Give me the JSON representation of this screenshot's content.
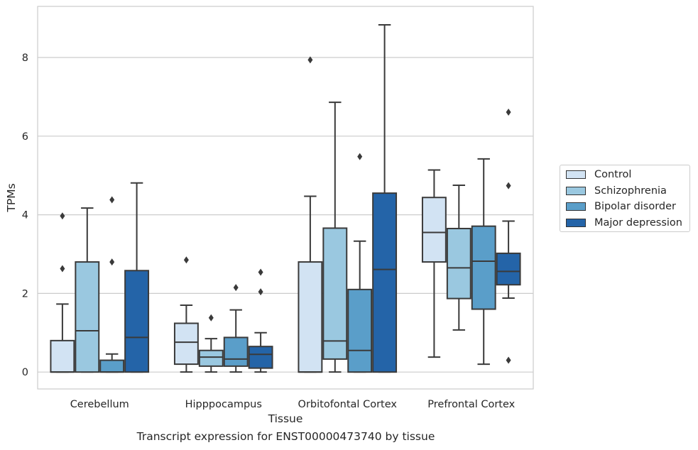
{
  "caption": "Transcript expression for ENST00000473740 by tissue",
  "chart_data": {
    "type": "box",
    "title": "",
    "xlabel": "Tissue",
    "ylabel": "TPMs",
    "ylim": [
      -0.43,
      9.3
    ],
    "yticks": [
      0,
      2,
      4,
      6,
      8
    ],
    "grid": "horizontal",
    "legend_position": "right",
    "categories": [
      "Cerebellum",
      "Hipppocampus",
      "Orbitofontal Cortex",
      "Prefrontal Cortex"
    ],
    "series": [
      {
        "name": "Control",
        "color": "#d2e3f3",
        "boxes": [
          {
            "whislo": 0,
            "q1": 0,
            "med": 0,
            "q3": 0.8,
            "whishi": 1.73,
            "fliers": [
              2.63,
              3.97
            ]
          },
          {
            "whislo": 0,
            "q1": 0.2,
            "med": 0.76,
            "q3": 1.24,
            "whishi": 1.7,
            "fliers": [
              2.85
            ]
          },
          {
            "whislo": 0,
            "q1": 0,
            "med": 0,
            "q3": 2.8,
            "whishi": 4.47,
            "fliers": [
              7.94
            ]
          },
          {
            "whislo": 0.38,
            "q1": 2.8,
            "med": 3.55,
            "q3": 4.44,
            "whishi": 5.14,
            "fliers": []
          }
        ]
      },
      {
        "name": "Schizophrenia",
        "color": "#9ac8e0",
        "boxes": [
          {
            "whislo": 0,
            "q1": 0,
            "med": 1.05,
            "q3": 2.8,
            "whishi": 4.17,
            "fliers": []
          },
          {
            "whislo": 0,
            "q1": 0.15,
            "med": 0.38,
            "q3": 0.55,
            "whishi": 0.85,
            "fliers": [
              1.38
            ]
          },
          {
            "whislo": 0,
            "q1": 0.33,
            "med": 0.79,
            "q3": 3.66,
            "whishi": 6.86,
            "fliers": []
          },
          {
            "whislo": 1.07,
            "q1": 1.87,
            "med": 2.65,
            "q3": 3.65,
            "whishi": 4.75,
            "fliers": []
          }
        ]
      },
      {
        "name": "Bipolar disorder",
        "color": "#5a9ec9",
        "boxes": [
          {
            "whislo": 0,
            "q1": 0,
            "med": 0,
            "q3": 0.3,
            "whishi": 0.46,
            "fliers": [
              2.8,
              4.38
            ]
          },
          {
            "whislo": 0,
            "q1": 0.15,
            "med": 0.33,
            "q3": 0.88,
            "whishi": 1.58,
            "fliers": [
              2.15
            ]
          },
          {
            "whislo": 0,
            "q1": 0,
            "med": 0.55,
            "q3": 2.1,
            "whishi": 3.33,
            "fliers": [
              5.48
            ]
          },
          {
            "whislo": 0.2,
            "q1": 1.6,
            "med": 2.82,
            "q3": 3.71,
            "whishi": 5.42,
            "fliers": []
          }
        ]
      },
      {
        "name": "Major depression",
        "color": "#2464a8",
        "boxes": [
          {
            "whislo": 0,
            "q1": 0,
            "med": 0.88,
            "q3": 2.58,
            "whishi": 4.81,
            "fliers": []
          },
          {
            "whislo": 0,
            "q1": 0.1,
            "med": 0.45,
            "q3": 0.65,
            "whishi": 1.0,
            "fliers": [
              2.04,
              2.54
            ]
          },
          {
            "whislo": 0,
            "q1": 0,
            "med": 2.61,
            "q3": 4.55,
            "whishi": 8.83,
            "fliers": []
          },
          {
            "whislo": 1.88,
            "q1": 2.22,
            "med": 2.56,
            "q3": 3.02,
            "whishi": 3.84,
            "fliers": [
              0.3,
              4.74,
              6.61
            ]
          }
        ]
      }
    ]
  }
}
